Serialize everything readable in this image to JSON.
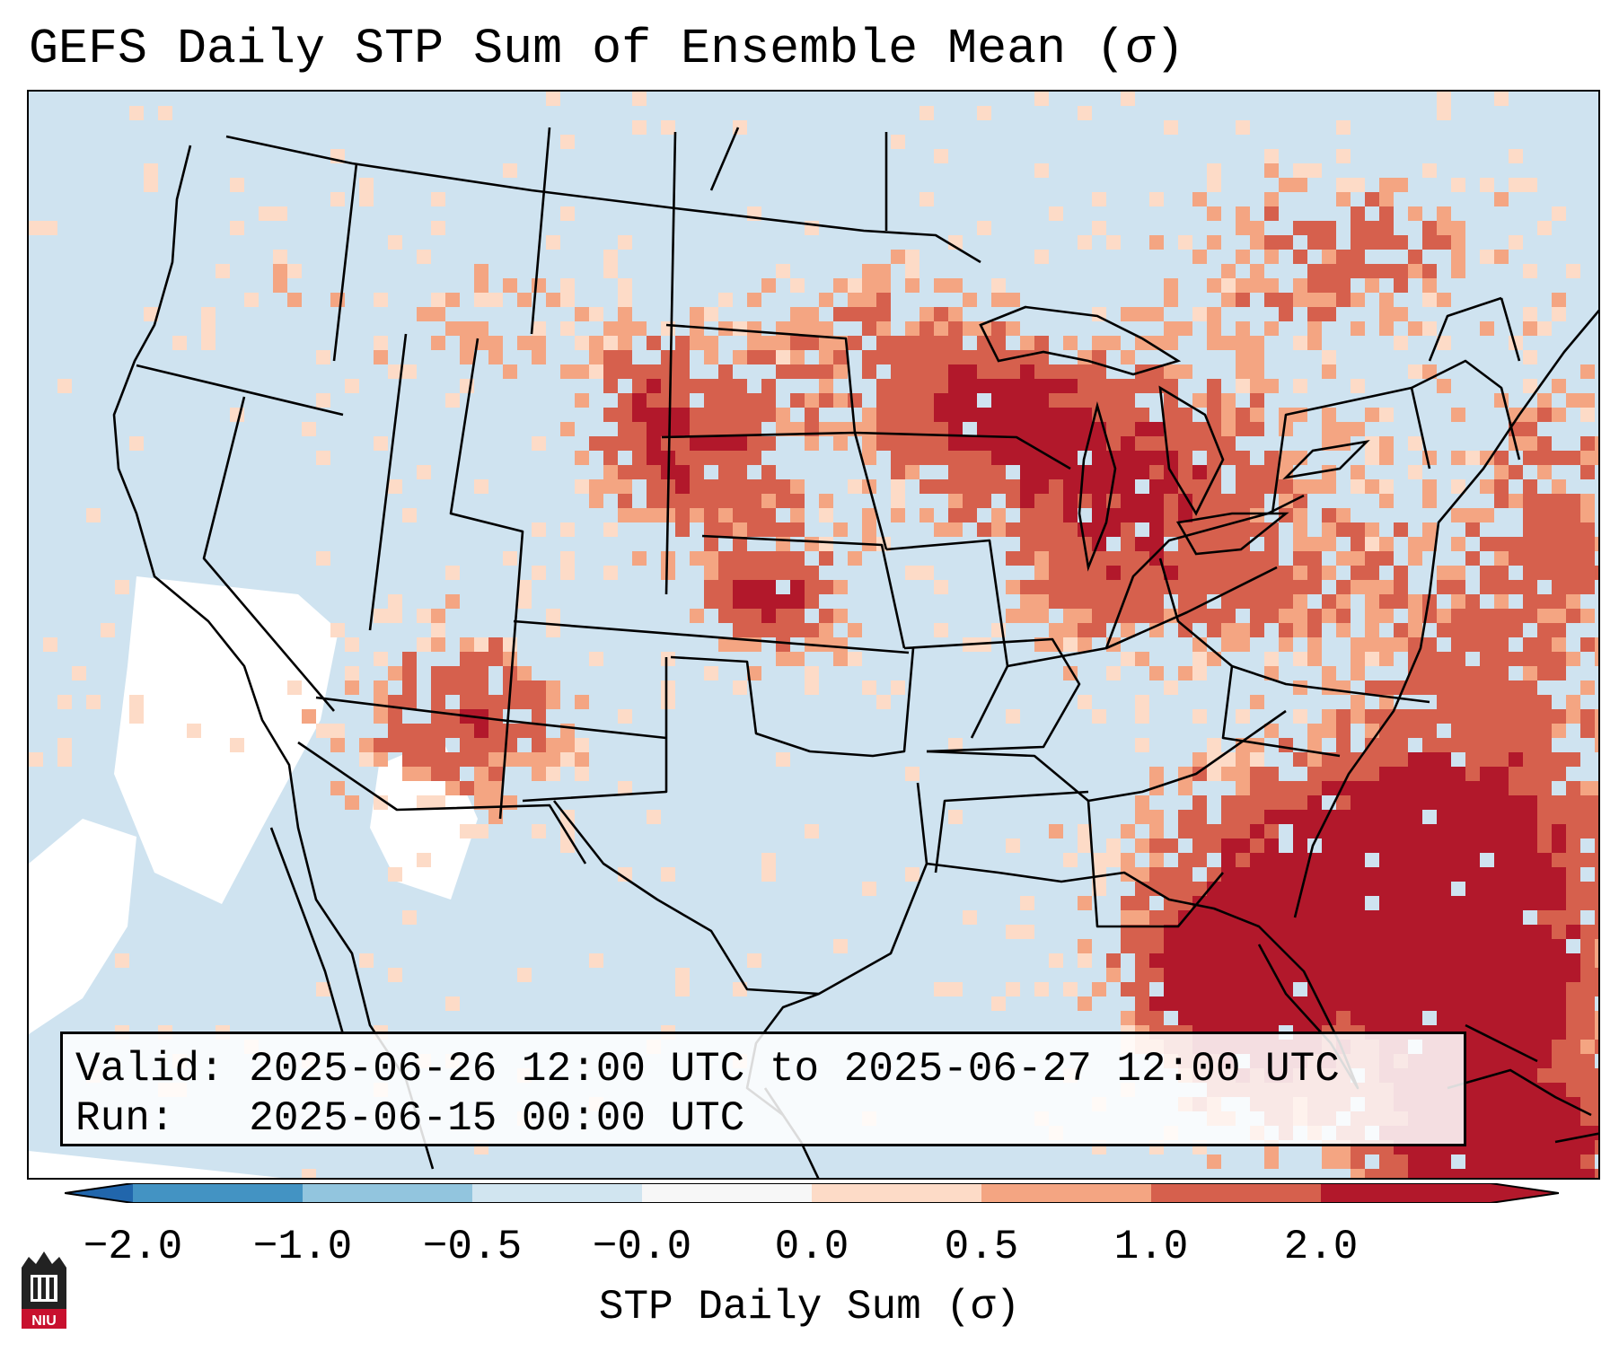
{
  "title": "GEFS Daily STP Sum of Ensemble Mean (σ)",
  "info": {
    "valid_label": "Valid:",
    "valid_value": "2025-06-26 12:00 UTC to 2025-06-27 12:00 UTC",
    "run_label": "Run:",
    "run_value": "2025-06-15 00:00 UTC"
  },
  "colorbar": {
    "label": "STP Daily Sum (σ)",
    "ticks": [
      "−2.0",
      "−1.0",
      "−0.5",
      "−0.0",
      "0.0",
      "0.5",
      "1.0",
      "2.0"
    ],
    "colors": [
      "#4393c3",
      "#92c5de",
      "#d1e5f0",
      "#f7f7f7",
      "#fddbc7",
      "#f4a582",
      "#d6604d",
      "#b2182b"
    ],
    "extend_low_color": "#2166ac",
    "extend_high_color": "#b2182b"
  },
  "logo": {
    "text": "NIU",
    "color": "#c8102e"
  },
  "colors": {
    "background_neutral": "#cfe3f0",
    "negative_below": "#ffffff"
  }
}
